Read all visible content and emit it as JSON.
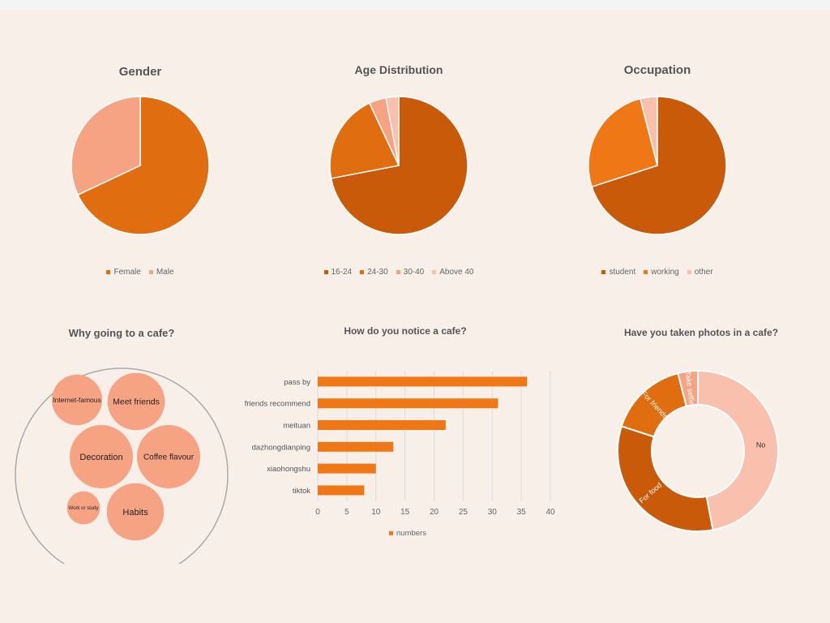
{
  "colors": {
    "background": "#f8efe9",
    "dark_orange": "#c85a0a",
    "orange": "#e06d0f",
    "bright_orange": "#f07716",
    "salmon": "#f6a383",
    "light_salmon": "#f9c0ad",
    "grid": "#dddddd",
    "outer_circle": "#aaaaaa"
  },
  "chart_data": [
    {
      "type": "pie",
      "title": "Gender",
      "labels": [
        "Female",
        "Male"
      ],
      "values": [
        68,
        32
      ],
      "colors": [
        "#e06d0f",
        "#f6a383"
      ],
      "legend": "bottom"
    },
    {
      "type": "pie",
      "title": "Age Distribution",
      "labels": [
        "16-24",
        "24-30",
        "30-40",
        "Above 40"
      ],
      "values": [
        72,
        21,
        4,
        3
      ],
      "colors": [
        "#c85a0a",
        "#e06d0f",
        "#f6a383",
        "#f9c0ad"
      ],
      "legend": "bottom"
    },
    {
      "type": "pie",
      "title": "Occupation",
      "labels": [
        "student",
        "working",
        "other"
      ],
      "values": [
        70,
        26,
        4
      ],
      "colors": [
        "#c85a0a",
        "#f07716",
        "#f9c0ad"
      ],
      "legend": "bottom"
    },
    {
      "type": "bubble",
      "title": "Why going to a cafe?",
      "labels": [
        "Internet-famous",
        "Meet friends",
        "Decoration",
        "Coffee flavour",
        "Work or study",
        "Habits"
      ],
      "values": [
        7,
        9,
        11,
        11,
        3,
        9
      ]
    },
    {
      "type": "bar",
      "orientation": "horizontal",
      "title": "How do you notice a cafe?",
      "categories": [
        "pass by",
        "friends recommend",
        "meituan",
        "dazhongdianping",
        "xiaohongshu",
        "tiktok"
      ],
      "series": [
        {
          "name": "numbers",
          "values": [
            36,
            31,
            22,
            13,
            10,
            8
          ]
        }
      ],
      "xlim": [
        0,
        40
      ],
      "xticks": [
        0,
        5,
        10,
        15,
        20,
        25,
        30,
        35,
        40
      ],
      "grid": true,
      "legend": "bottom"
    },
    {
      "type": "donut",
      "title": "Have you taken photos in a cafe?",
      "labels": [
        "No",
        "For food",
        "For friends",
        "Take selfie"
      ],
      "values": [
        47,
        33,
        16,
        4
      ],
      "colors": [
        "#f9c0ad",
        "#c85a0a",
        "#e06d0f",
        "#f6a383"
      ]
    }
  ]
}
